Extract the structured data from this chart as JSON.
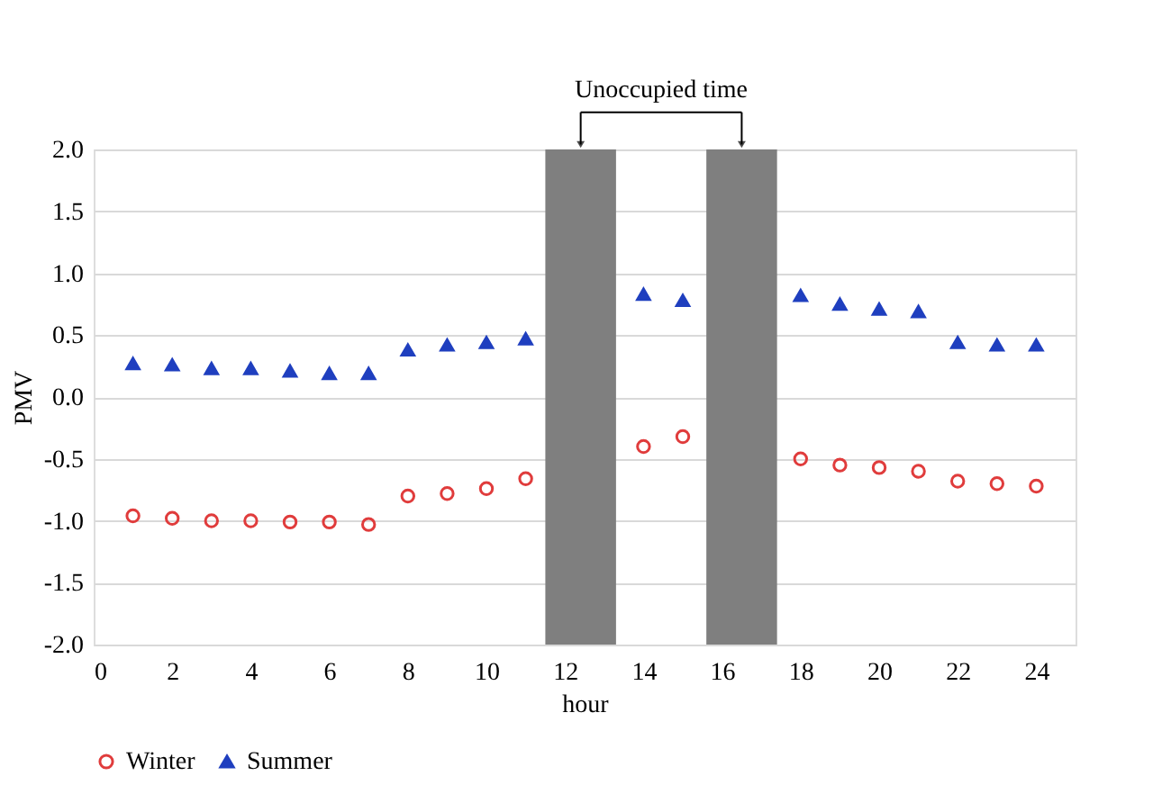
{
  "chart_data": {
    "type": "scatter",
    "xlabel": "hour",
    "ylabel": "PMV",
    "x": [
      1,
      2,
      3,
      4,
      5,
      6,
      7,
      8,
      9,
      10,
      11,
      14,
      15,
      18,
      19,
      20,
      21,
      22,
      23,
      24
    ],
    "series": [
      {
        "name": "Winter",
        "color": "#e03c3c",
        "marker": "circle",
        "values": [
          -0.96,
          -0.98,
          -1.0,
          -1.0,
          -1.01,
          -1.01,
          -1.03,
          -0.8,
          -0.78,
          -0.74,
          -0.66,
          -0.4,
          -0.32,
          -0.5,
          -0.55,
          -0.57,
          -0.6,
          -0.68,
          -0.7,
          -0.72
        ]
      },
      {
        "name": "Summer",
        "color": "#1f3fbf",
        "marker": "triangle",
        "values": [
          0.27,
          0.26,
          0.23,
          0.23,
          0.21,
          0.19,
          0.19,
          0.38,
          0.42,
          0.44,
          0.47,
          0.83,
          0.78,
          0.82,
          0.75,
          0.71,
          0.69,
          0.44,
          0.42,
          0.42
        ]
      }
    ],
    "xlim": [
      0,
      25
    ],
    "xticks": [
      0,
      2,
      4,
      6,
      8,
      10,
      12,
      14,
      16,
      18,
      20,
      22,
      24
    ],
    "ylim": [
      -2.0,
      2.0
    ],
    "yticks": [
      {
        "value": -2,
        "label": "-2.0"
      },
      {
        "value": -1.5,
        "label": "-1.5"
      },
      {
        "value": -1,
        "label": "-1.0"
      },
      {
        "value": -0.5,
        "label": "-0.5"
      },
      {
        "value": 0,
        "label": "0.0"
      },
      {
        "value": 0.5,
        "label": "0.5"
      },
      {
        "value": 1,
        "label": "1.0"
      },
      {
        "value": 1.5,
        "label": "1.5"
      },
      {
        "value": 2,
        "label": "2.0"
      }
    ],
    "bands": [
      {
        "axis": "x",
        "from": 11.5,
        "to": 13.3,
        "color": "#7f7f7f"
      },
      {
        "axis": "x",
        "from": 15.6,
        "to": 17.4,
        "color": "#7f7f7f"
      }
    ],
    "annotations": [
      "Unoccupied time"
    ],
    "grid": "y",
    "legend": "bottom"
  }
}
